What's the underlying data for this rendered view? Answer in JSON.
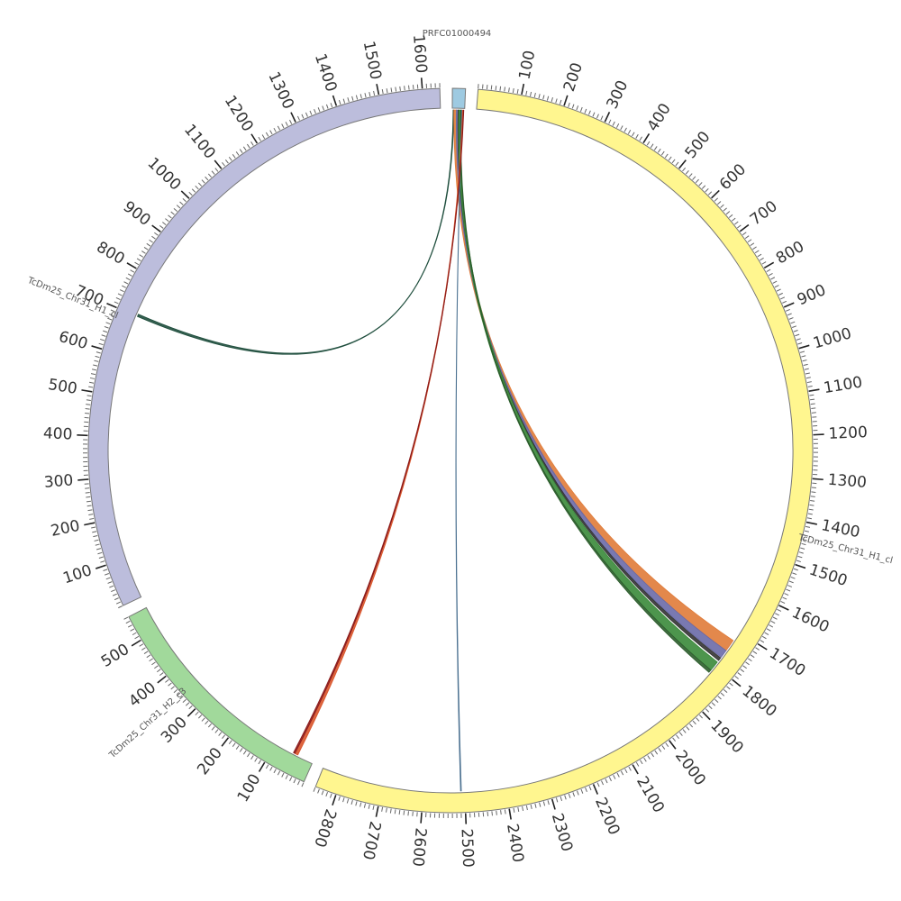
{
  "chart_data": {
    "type": "circos",
    "segments": [
      {
        "name": "PRFC01000494",
        "length": 30,
        "color": "#9ecae1",
        "ticks": []
      },
      {
        "name": "TcDm25_Chr31_H1_cl",
        "length": 2850,
        "color": "#fff68f",
        "ticks": [
          100,
          200,
          300,
          400,
          500,
          600,
          700,
          800,
          900,
          1000,
          1100,
          1200,
          1300,
          1400,
          1500,
          1600,
          1700,
          1800,
          1900,
          2000,
          2100,
          2200,
          2300,
          2400,
          2500,
          2600,
          2700,
          2800
        ]
      },
      {
        "name": "TcDm25_Chr31_H2_c3",
        "length": 560,
        "color": "#a1d99b",
        "ticks": [
          100,
          200,
          300,
          400,
          500
        ]
      },
      {
        "name": "TcDm25_Chr31_H1_cl",
        "length": 1640,
        "color": "#bcbddc",
        "ticks": [
          100,
          200,
          300,
          400,
          500,
          600,
          700,
          800,
          900,
          1000,
          1100,
          1200,
          1300,
          1400,
          1500,
          1600
        ]
      }
    ],
    "links": [
      {
        "source": 0,
        "source_start": 2,
        "source_end": 4,
        "target": 3,
        "target_start": 700,
        "target_end": 706,
        "color": "#1f4e3d"
      },
      {
        "source": 0,
        "source_start": 4,
        "source_end": 10,
        "target": 1,
        "target_start": 1725,
        "target_end": 1755,
        "color": "#e07b39"
      },
      {
        "source": 0,
        "source_start": 10,
        "source_end": 14,
        "target": 1,
        "target_start": 1755,
        "target_end": 1775,
        "color": "#6a6aa8"
      },
      {
        "source": 0,
        "source_start": 14,
        "source_end": 16,
        "target": 1,
        "target_start": 1777,
        "target_end": 1785,
        "color": "#333333"
      },
      {
        "source": 0,
        "source_start": 16,
        "source_end": 20,
        "target": 1,
        "target_start": 1790,
        "target_end": 1815,
        "color": "#3a8a3a"
      },
      {
        "source": 0,
        "source_start": 20,
        "source_end": 22,
        "target": 1,
        "target_start": 1815,
        "target_end": 1822,
        "color": "#2c5d2c"
      },
      {
        "source": 0,
        "source_start": 23,
        "source_end": 24,
        "target": 1,
        "target_start": 2508,
        "target_end": 2510,
        "color": "#4a7090"
      },
      {
        "source": 0,
        "source_start": 25,
        "source_end": 27,
        "target": 2,
        "target_start": 40,
        "target_end": 48,
        "color": "#d9542a"
      },
      {
        "source": 0,
        "source_start": 27,
        "source_end": 28,
        "target": 2,
        "target_start": 48,
        "target_end": 52,
        "color": "#8b1a1a"
      }
    ]
  }
}
